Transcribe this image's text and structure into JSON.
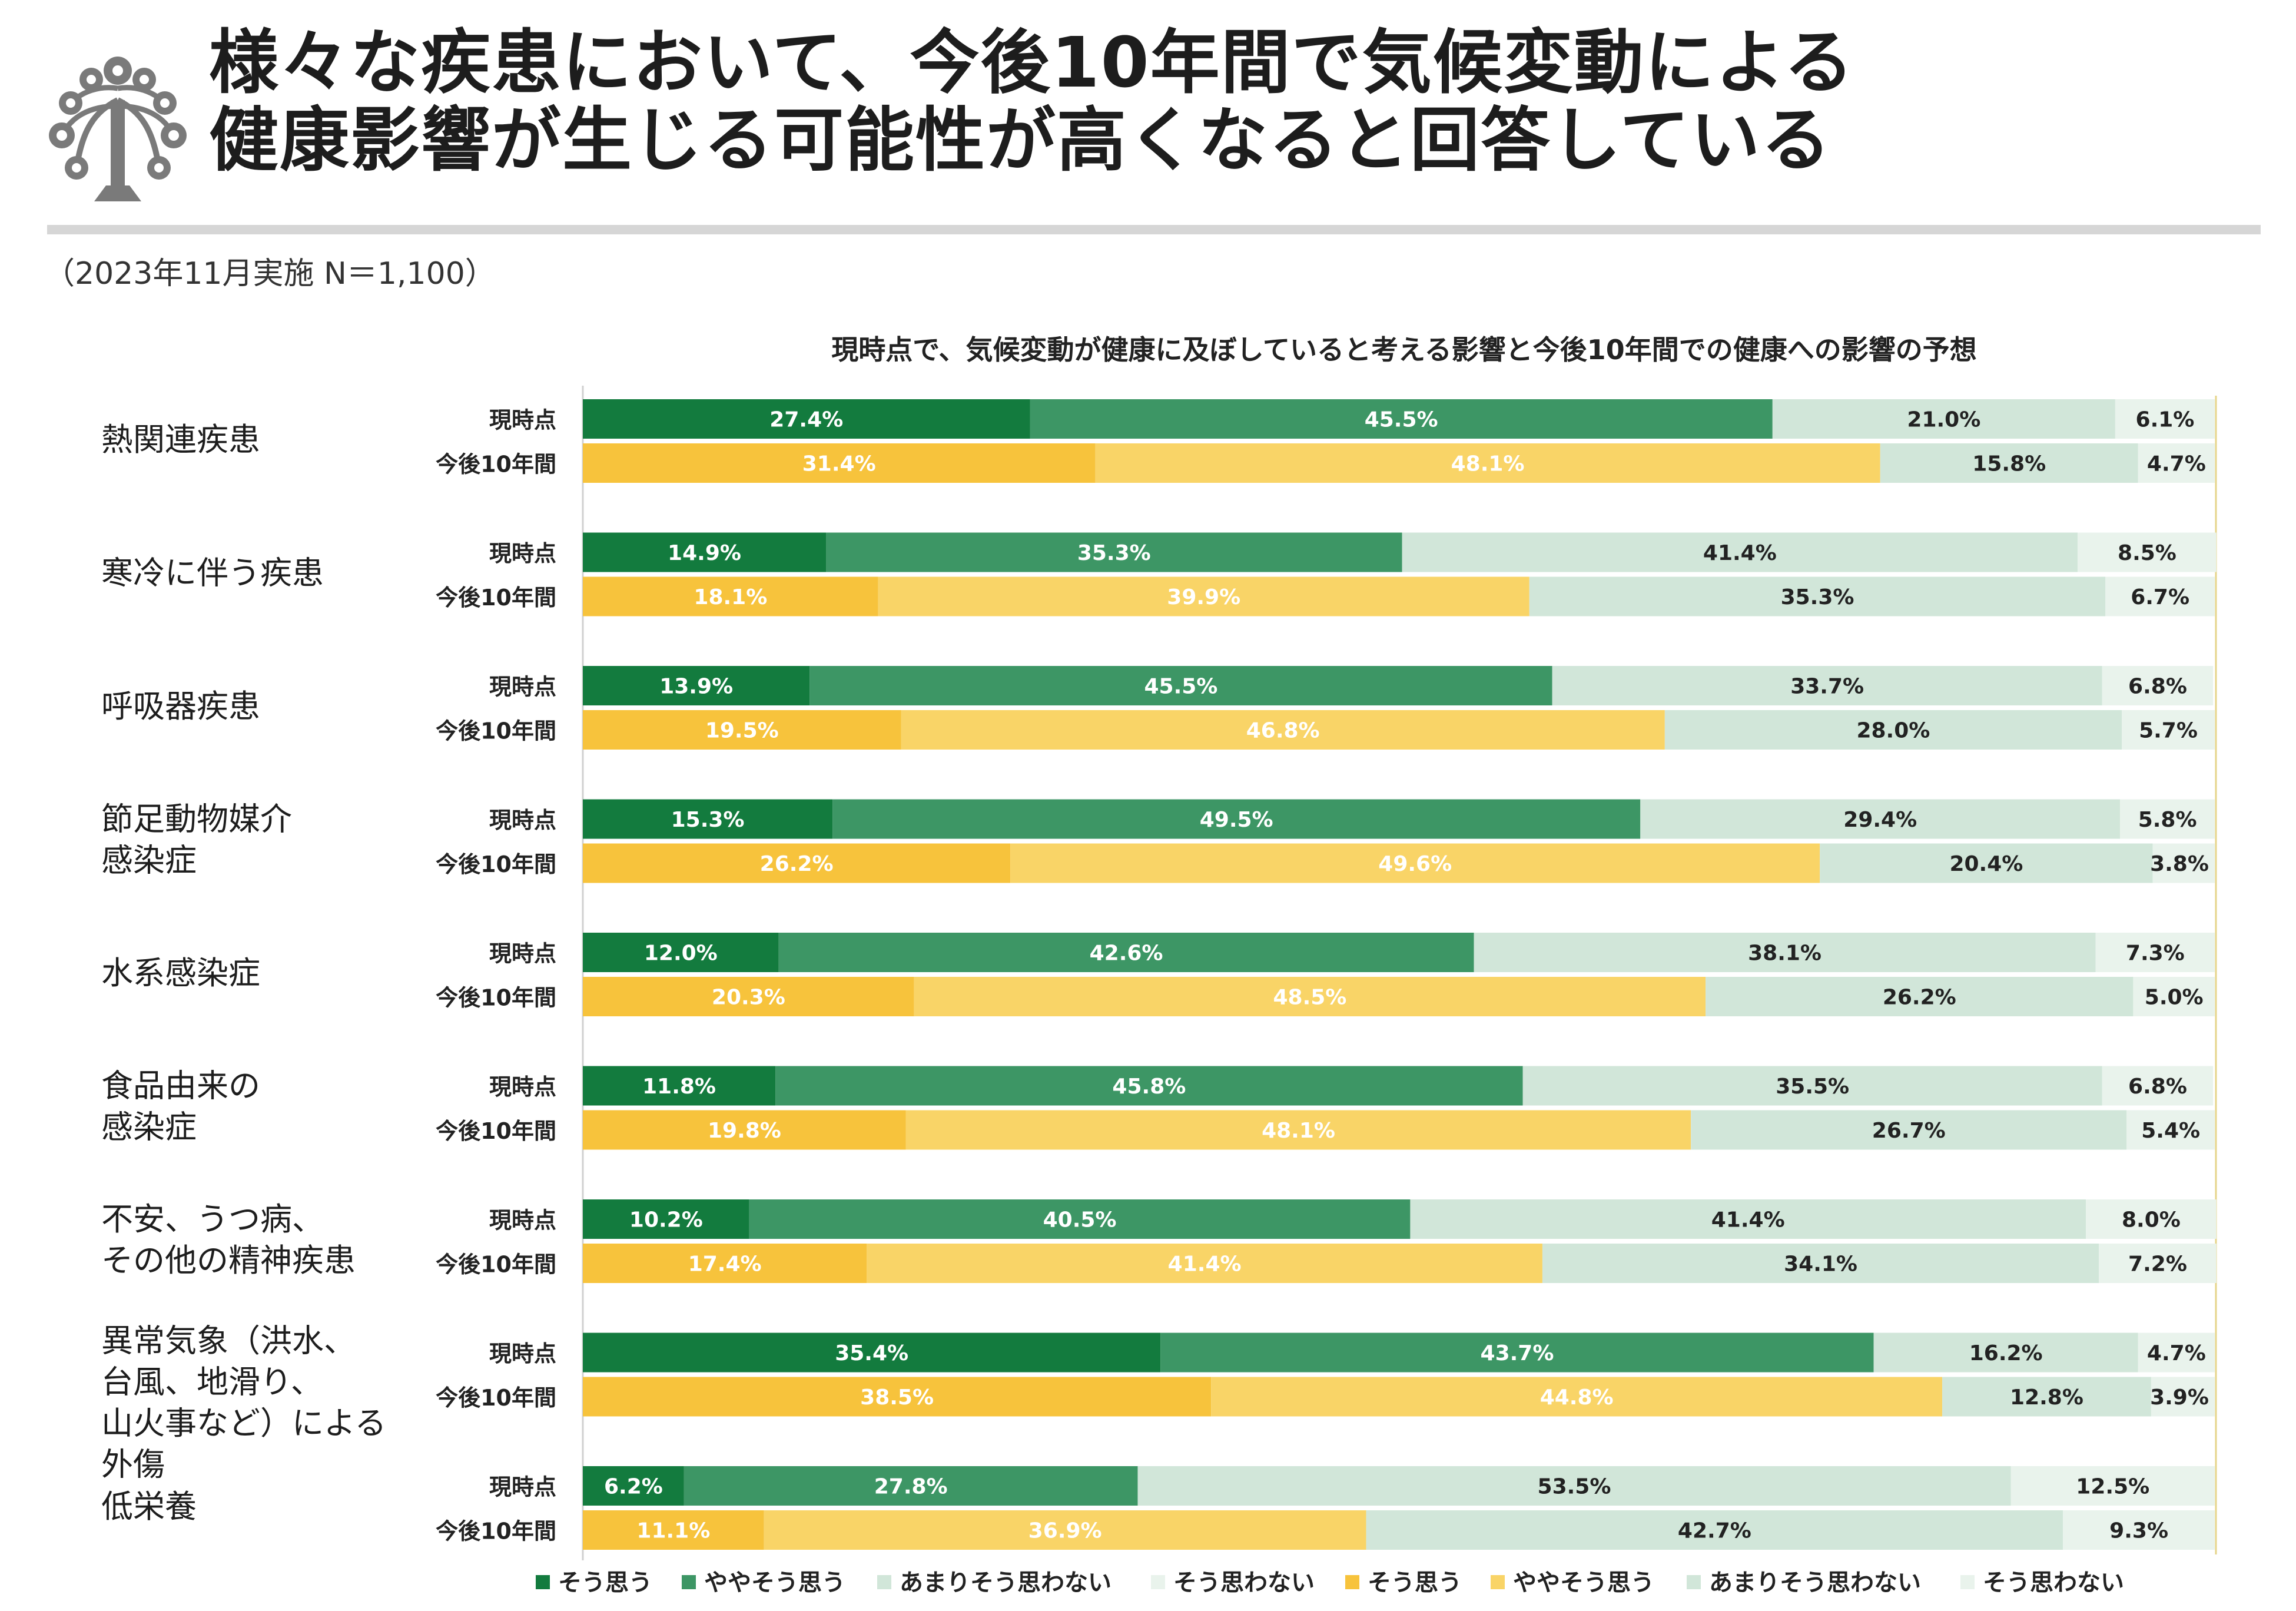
{
  "header": {
    "title_line1": "様々な疾患において、今後10年間で気候変動による",
    "title_line2": "健康影響が生じる可能性が高くなると回答している",
    "survey_note": "（2023年11月実施 N＝1,100）"
  },
  "colors": {
    "current_strong": "#137b3e",
    "current_some": "#3d9665",
    "current_notmuch": "#d1e6d9",
    "current_not": "#e9f3ec",
    "future_strong": "#f7c33c",
    "future_some": "#f9d467",
    "future_notmuch": "#d1e6d9",
    "future_not": "#e9f3ec"
  },
  "chart_data": {
    "type": "bar",
    "orientation": "horizontal-stacked-100",
    "title": "現時点で、気候変動が健康に及ぼしていると考える影響と今後10年間での健康への影響の予想",
    "row_labels": [
      "現時点",
      "今後10年間"
    ],
    "categories": [
      [
        "熱関連疾患"
      ],
      [
        "寒冷に伴う疾患"
      ],
      [
        "呼吸器疾患"
      ],
      [
        "節足動物媒介",
        "感染症"
      ],
      [
        "水系感染症"
      ],
      [
        "食品由来の",
        "感染症"
      ],
      [
        "不安、うつ病、",
        "その他の精神疾患"
      ],
      [
        "異常気象（洪水、",
        "台風、地滑り、",
        "山火事など）による",
        "外傷"
      ],
      [
        "低栄養"
      ]
    ],
    "series": [
      {
        "name": "そう思う",
        "group": "現時点",
        "values": [
          27.4,
          14.9,
          13.9,
          15.3,
          12.0,
          11.8,
          10.2,
          35.4,
          6.2
        ]
      },
      {
        "name": "ややそう思う",
        "group": "現時点",
        "values": [
          45.5,
          35.3,
          45.5,
          49.5,
          42.6,
          45.8,
          40.5,
          43.7,
          27.8
        ]
      },
      {
        "name": "あまりそう思わない",
        "group": "現時点",
        "values": [
          21.0,
          41.4,
          33.7,
          29.4,
          38.1,
          35.5,
          41.4,
          16.2,
          53.5
        ]
      },
      {
        "name": "そう思わない",
        "group": "現時点",
        "values": [
          6.1,
          8.5,
          6.8,
          5.8,
          7.3,
          6.8,
          8.0,
          4.7,
          12.5
        ]
      },
      {
        "name": "そう思う",
        "group": "今後10年間",
        "values": [
          31.4,
          18.1,
          19.5,
          26.2,
          20.3,
          19.8,
          17.4,
          38.5,
          11.1
        ]
      },
      {
        "name": "ややそう思う",
        "group": "今後10年間",
        "values": [
          48.1,
          39.9,
          46.8,
          49.6,
          48.5,
          48.1,
          41.4,
          44.8,
          36.9
        ]
      },
      {
        "name": "あまりそう思わない",
        "group": "今後10年間",
        "values": [
          15.8,
          35.3,
          28.0,
          20.4,
          26.2,
          26.7,
          34.1,
          12.8,
          42.7
        ]
      },
      {
        "name": "そう思わない",
        "group": "今後10年間",
        "values": [
          4.7,
          6.7,
          5.7,
          3.8,
          5.0,
          5.4,
          7.2,
          3.9,
          9.3
        ]
      }
    ],
    "value_suffix": "%",
    "xlim": [
      0,
      100
    ],
    "legend": [
      "そう思う",
      "ややそう思う",
      "あまりそう思わない",
      "そう思わない",
      "そう思う",
      "ややそう思う",
      "あまりそう思わない",
      "そう思わない"
    ],
    "legend_position": "bottom"
  }
}
